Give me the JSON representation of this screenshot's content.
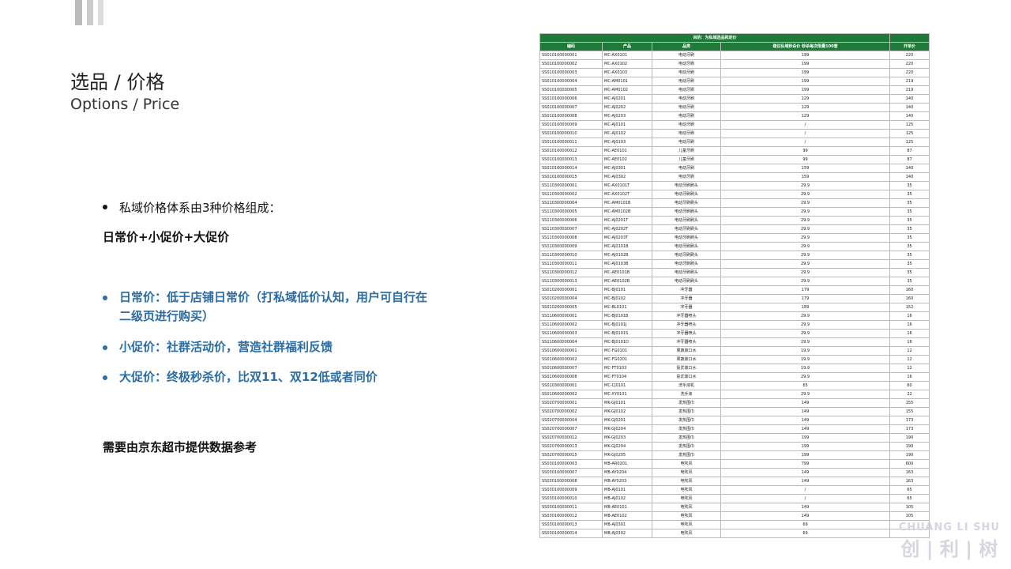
{
  "header": {
    "title": "选品 / 价格",
    "subtitle": "Options / Price"
  },
  "intro": "私域价格体系由3种价格组成：",
  "formula": "日常价+小促价+大促价",
  "bullets": [
    "日常价：低于店铺日常价（打私域低价认知，用户可自行在二级页进行购买）",
    "小促价：社群活动价，营造社群福利反馈",
    "大促价：终极秒杀价，比双11、双12低或者同价"
  ],
  "footer_note": "需要由京东超市提供数据参考",
  "logo": {
    "en": "CHUANG LI SHU",
    "cn": "创 | 利 | 树"
  },
  "table": {
    "caption": "目的：为私域选品和定价",
    "columns": [
      "编码",
      "产品",
      "品类",
      "建议私域秒杀价 秒杀每次限量100套",
      "开单价"
    ],
    "rows": [
      [
        "SS010100000001",
        "MC-AX0101",
        "电动牙刷",
        "199",
        "220"
      ],
      [
        "SS010100000002",
        "MC-AX0102",
        "电动牙刷",
        "199",
        "220"
      ],
      [
        "SS010100000003",
        "MC-AX0103",
        "电动牙刷",
        "199",
        "220"
      ],
      [
        "SS010100000004",
        "MC-AM0101",
        "电动牙刷",
        "199",
        "219"
      ],
      [
        "SS010100000005",
        "MC-AM0102",
        "电动牙刷",
        "199",
        "219"
      ],
      [
        "SS010100000006",
        "MC-AJ0201",
        "电动牙刷",
        "129",
        "140"
      ],
      [
        "SS010100000007",
        "MC-AJ0202",
        "电动牙刷",
        "129",
        "140"
      ],
      [
        "SS010100000008",
        "MC-AJ0203",
        "电动牙刷",
        "129",
        "140"
      ],
      [
        "SS010100000009",
        "MC-AJ0101",
        "电动牙刷",
        "/",
        "125"
      ],
      [
        "SS010100000010",
        "MC-AJ0102",
        "电动牙刷",
        "/",
        "125"
      ],
      [
        "SS010100000011",
        "MC-AJ0103",
        "电动牙刷",
        "/",
        "125"
      ],
      [
        "SS010100000012",
        "MC-AE0101",
        "儿童牙刷",
        "99",
        "87"
      ],
      [
        "SS010100000013",
        "MC-AE0102",
        "儿童牙刷",
        "99",
        "87"
      ],
      [
        "SS010100000014",
        "MC-AJ0301",
        "电动牙刷",
        "159",
        "140"
      ],
      [
        "SS010100000015",
        "MC-AJ0302",
        "电动牙刷",
        "159",
        "140"
      ],
      [
        "SS110300000001",
        "MC-AX0101T",
        "电动牙刷刷头",
        "29.9",
        "35"
      ],
      [
        "SS110300000002",
        "MC-AX0102T",
        "电动牙刷刷头",
        "29.9",
        "35"
      ],
      [
        "SS110300000004",
        "MC-AM0101B",
        "电动牙刷刷头",
        "29.9",
        "35"
      ],
      [
        "SS110300000005",
        "MC-AM0102B",
        "电动牙刷刷头",
        "29.9",
        "35"
      ],
      [
        "SS110300000006",
        "MC-AJ0201T",
        "电动牙刷刷头",
        "29.9",
        "35"
      ],
      [
        "SS110300000007",
        "MC-AJ0202T",
        "电动牙刷刷头",
        "29.9",
        "35"
      ],
      [
        "SS110300000008",
        "MC-AJ0203T",
        "电动牙刷刷头",
        "29.9",
        "35"
      ],
      [
        "SS110300000009",
        "MC-AJ0101B",
        "电动牙刷刷头",
        "29.9",
        "35"
      ],
      [
        "SS110300000010",
        "MC-AJ0102B",
        "电动牙刷刷头",
        "29.9",
        "35"
      ],
      [
        "SS110300000011",
        "MC-AJ0103B",
        "电动牙刷刷头",
        "29.9",
        "35"
      ],
      [
        "SS110300000012",
        "MC-AE0101B",
        "电动牙刷刷头",
        "29.9",
        "35"
      ],
      [
        "SS110300000013",
        "MC-AE0102B",
        "电动牙刷刷头",
        "29.9",
        "35"
      ],
      [
        "SS010200000001",
        "MC-BJ0101",
        "冲牙器",
        "179",
        "160"
      ],
      [
        "SS010200000004",
        "MC-BJ0102",
        "冲牙器",
        "179",
        "160"
      ],
      [
        "SS010200000005",
        "MC-BL0101",
        "冲牙器",
        "189",
        "152"
      ],
      [
        "SS110600000001",
        "MC-BJ0101B",
        "冲牙器喷头",
        "29.9",
        "16"
      ],
      [
        "SS110600000002",
        "MC-BJ0101J",
        "冲牙器喷头",
        "29.9",
        "16"
      ],
      [
        "SS110600000003",
        "MC-BJ0101S",
        "冲牙器喷头",
        "29.9",
        "16"
      ],
      [
        "SS110600000004",
        "MC-BJ0101D",
        "冲牙器喷头",
        "29.9",
        "16"
      ],
      [
        "SS010600000001",
        "MC-FG0101",
        "果蔬漱口水",
        "19.9",
        "12"
      ],
      [
        "SS010600000002",
        "MC-FG0201",
        "果蔬漱口水",
        "19.9",
        "12"
      ],
      [
        "SS010600000007",
        "MC-FT0103",
        "氨优漱口水",
        "19.9",
        "12"
      ],
      [
        "SS010600000008",
        "MC-FT0104",
        "氨优漱口水",
        "29.9",
        "16"
      ],
      [
        "SS010300000001",
        "MC-CJ0101",
        "洗手液机",
        "65",
        "60"
      ],
      [
        "SS010600000002",
        "MC-XY0101",
        "洗手液",
        "29.9",
        "22"
      ],
      [
        "SS020700000001",
        "MK-GJ0101",
        "发热围巾",
        "149",
        "155"
      ],
      [
        "SS020700000002",
        "MK-GJ0102",
        "发热围巾",
        "149",
        "155"
      ],
      [
        "SS020700000004",
        "MK-GJ0201",
        "发热围巾",
        "149",
        "173"
      ],
      [
        "SS020700000007",
        "MK-GJ0204",
        "发热围巾",
        "149",
        "173"
      ],
      [
        "SS020700000012",
        "MK-GJ0203",
        "发热围巾",
        "199",
        "190"
      ],
      [
        "SS020700000013",
        "MK-GJ0204",
        "发热围巾",
        "199",
        "190"
      ],
      [
        "SS020700000015",
        "MK-GJ0205",
        "发热围巾",
        "199",
        "190"
      ],
      [
        "SS030100000003",
        "MB-AR0201",
        "电吹风",
        "799",
        "600"
      ],
      [
        "SS030100000007",
        "MB-AY0204",
        "电吹风",
        "149",
        "163"
      ],
      [
        "SS030100000008",
        "MB-AY0203",
        "电吹风",
        "149",
        "163"
      ],
      [
        "SS030100000009",
        "MB-AJ0101",
        "电吹风",
        "/",
        "65"
      ],
      [
        "SS030100000010",
        "MB-AJ0102",
        "电吹风",
        "/",
        "65"
      ],
      [
        "SS030100000011",
        "MB-AE0101",
        "电吹风",
        "149",
        "105"
      ],
      [
        "SS030100000012",
        "MB-AE0102",
        "电吹风",
        "149",
        "105"
      ],
      [
        "SS030100000013",
        "MB-AJ0301",
        "电吹风",
        "69",
        null
      ],
      [
        "SS030100000014",
        "MB-AJ0302",
        "电吹风",
        "69",
        null
      ]
    ]
  }
}
